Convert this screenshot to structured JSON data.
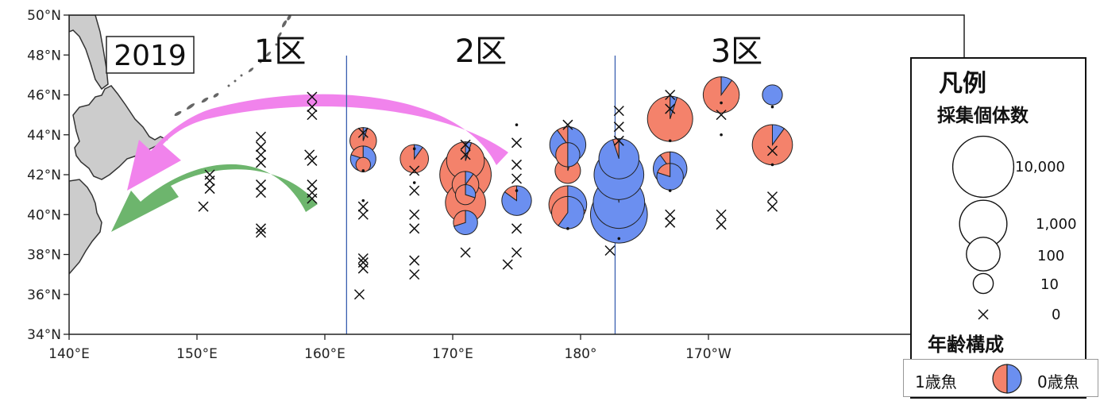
{
  "year": "2019",
  "zones": [
    {
      "label": "1区",
      "lon": 156.5
    },
    {
      "label": "2区",
      "lon": 172.2
    },
    {
      "label": "3区",
      "lon": 192.2
    }
  ],
  "zone_dividers": [
    161.7,
    182.7
  ],
  "axes": {
    "lon_range": [
      140,
      210
    ],
    "lat_range": [
      34,
      50
    ],
    "x_ticks": [
      {
        "lon": 140,
        "label": "140°E"
      },
      {
        "lon": 150,
        "label": "150°E"
      },
      {
        "lon": 160,
        "label": "160°E"
      },
      {
        "lon": 170,
        "label": "170°E"
      },
      {
        "lon": 180,
        "label": "180°"
      },
      {
        "lon": 190,
        "label": "170°W"
      }
    ],
    "y_ticks": [
      {
        "lat": 34,
        "label": "34°N"
      },
      {
        "lat": 36,
        "label": "36°N"
      },
      {
        "lat": 38,
        "label": "38°N"
      },
      {
        "lat": 40,
        "label": "40°N"
      },
      {
        "lat": 42,
        "label": "42°N"
      },
      {
        "lat": 44,
        "label": "44°N"
      },
      {
        "lat": 46,
        "label": "46°N"
      },
      {
        "lat": 48,
        "label": "48°N"
      },
      {
        "lat": 50,
        "label": "50°N"
      }
    ]
  },
  "colors": {
    "age1": "#f4826b",
    "age0": "#6b8ff0",
    "land": "#cccccc",
    "pink_arrow": "#f183ec",
    "green_arrow": "#6db56d",
    "divider": "#3a5fb0"
  },
  "legend": {
    "title": "凡例",
    "count_title": "採集個体数",
    "age_title": "年齢構成",
    "sizes": [
      {
        "label": "10,000",
        "count": 10000
      },
      {
        "label": "1,000",
        "count": 1000
      },
      {
        "label": "100",
        "count": 100
      },
      {
        "label": "10",
        "count": 10
      },
      {
        "label": "0",
        "count": 0
      }
    ],
    "age_left": "1歳魚",
    "age_right": "0歳魚"
  },
  "stations": [
    {
      "lon": 151,
      "lat": 42,
      "count": 0
    },
    {
      "lon": 151,
      "lat": 41.7,
      "count": 0
    },
    {
      "lon": 151,
      "lat": 41.3,
      "count": 0
    },
    {
      "lon": 150.5,
      "lat": 40.4,
      "count": 0
    },
    {
      "lon": 155,
      "lat": 43.9,
      "count": 0
    },
    {
      "lon": 155,
      "lat": 43.4,
      "count": 0
    },
    {
      "lon": 155,
      "lat": 43,
      "count": 0
    },
    {
      "lon": 155,
      "lat": 42.6,
      "count": 0
    },
    {
      "lon": 155,
      "lat": 41.5,
      "count": 0
    },
    {
      "lon": 155,
      "lat": 41.1,
      "count": 0
    },
    {
      "lon": 155,
      "lat": 39.3,
      "count": 0
    },
    {
      "lon": 155,
      "lat": 39.1,
      "count": 0
    },
    {
      "lon": 159,
      "lat": 45.9,
      "count": 0
    },
    {
      "lon": 159,
      "lat": 45.4,
      "count": 0
    },
    {
      "lon": 159,
      "lat": 45,
      "count": 0
    },
    {
      "lon": 158.8,
      "lat": 43,
      "count": 0
    },
    {
      "lon": 159,
      "lat": 42.7,
      "count": 0
    },
    {
      "lon": 159,
      "lat": 41.5,
      "count": 0
    },
    {
      "lon": 159,
      "lat": 41.1,
      "count": 0
    },
    {
      "lon": 159,
      "lat": 40.8,
      "count": 0
    },
    {
      "lon": 163,
      "lat": 44.1,
      "count": 0
    },
    {
      "lon": 163,
      "lat": 43.7,
      "count": 30,
      "age1": 0.95
    },
    {
      "lon": 163,
      "lat": 42.8,
      "count": 25,
      "age1": 0.2
    },
    {
      "lon": 163,
      "lat": 42.5,
      "count": 4,
      "age1": 1
    },
    {
      "lon": 163,
      "lat": 42.2,
      "count": 1,
      "age1": 1
    },
    {
      "lon": 163,
      "lat": 40.7,
      "count": 1,
      "age1": 1
    },
    {
      "lon": 163,
      "lat": 40.4,
      "count": 0
    },
    {
      "lon": 163,
      "lat": 40,
      "count": 0
    },
    {
      "lon": 163,
      "lat": 37.8,
      "count": 0
    },
    {
      "lon": 163,
      "lat": 37.6,
      "count": 0
    },
    {
      "lon": 163,
      "lat": 37.3,
      "count": 0
    },
    {
      "lon": 162.7,
      "lat": 36,
      "count": 0
    },
    {
      "lon": 167,
      "lat": 43.3,
      "count": 1,
      "age1": 1
    },
    {
      "lon": 167,
      "lat": 42.8,
      "count": 40,
      "age1": 0.9
    },
    {
      "lon": 167,
      "lat": 42.2,
      "count": 0
    },
    {
      "lon": 167,
      "lat": 41.6,
      "count": 1,
      "age1": 1
    },
    {
      "lon": 167,
      "lat": 41.2,
      "count": 0
    },
    {
      "lon": 167,
      "lat": 40,
      "count": 0
    },
    {
      "lon": 167,
      "lat": 39.3,
      "count": 0
    },
    {
      "lon": 167,
      "lat": 37.7,
      "count": 0
    },
    {
      "lon": 167,
      "lat": 37,
      "count": 0
    },
    {
      "lon": 171,
      "lat": 43.5,
      "count": 0
    },
    {
      "lon": 171,
      "lat": 43,
      "count": 0
    },
    {
      "lon": 171,
      "lat": 42.7,
      "count": 200,
      "age1": 0.95
    },
    {
      "lon": 171,
      "lat": 42,
      "count": 2000,
      "age1": 0.97
    },
    {
      "lon": 171,
      "lat": 41.5,
      "count": 30,
      "age1": 0.9
    },
    {
      "lon": 171,
      "lat": 41,
      "count": 10,
      "age1": 0.7
    },
    {
      "lon": 171,
      "lat": 40.6,
      "count": 300,
      "age1": 0.9
    },
    {
      "lon": 171,
      "lat": 39.6,
      "count": 20,
      "age1": 0.3
    },
    {
      "lon": 171,
      "lat": 38.1,
      "count": 0
    },
    {
      "lon": 175,
      "lat": 44.5,
      "count": 1,
      "age1": 1
    },
    {
      "lon": 175,
      "lat": 43.6,
      "count": 0
    },
    {
      "lon": 175,
      "lat": 42.5,
      "count": 0
    },
    {
      "lon": 175,
      "lat": 41.8,
      "count": 0
    },
    {
      "lon": 175,
      "lat": 41.2,
      "count": 1,
      "age1": 1
    },
    {
      "lon": 175,
      "lat": 40.7,
      "count": 50,
      "age1": 0.15
    },
    {
      "lon": 175,
      "lat": 39.3,
      "count": 0
    },
    {
      "lon": 175,
      "lat": 38.1,
      "count": 0
    },
    {
      "lon": 174.3,
      "lat": 37.5,
      "count": 0
    },
    {
      "lon": 179,
      "lat": 44.5,
      "count": 0
    },
    {
      "lon": 179,
      "lat": 43.5,
      "count": 150,
      "age1": 0.1
    },
    {
      "lon": 179,
      "lat": 43,
      "count": 20,
      "age1": 0.5
    },
    {
      "lon": 179,
      "lat": 42.2,
      "count": 25,
      "age1": 0.95
    },
    {
      "lon": 179,
      "lat": 40.5,
      "count": 200,
      "age1": 0.7
    },
    {
      "lon": 179,
      "lat": 40.1,
      "count": 80,
      "age1": 0.4
    },
    {
      "lon": 179,
      "lat": 39.3,
      "count": 1,
      "age1": 0
    },
    {
      "lon": 183,
      "lat": 45.2,
      "count": 0
    },
    {
      "lon": 183,
      "lat": 44.4,
      "count": 0
    },
    {
      "lon": 183,
      "lat": 43.7,
      "count": 0
    },
    {
      "lon": 183,
      "lat": 42.8,
      "count": 300,
      "age1": 0.05
    },
    {
      "lon": 183,
      "lat": 42,
      "count": 1500,
      "age1": 0.02
    },
    {
      "lon": 183,
      "lat": 40.6,
      "count": 2000,
      "age1": 0.02
    },
    {
      "lon": 183,
      "lat": 40,
      "count": 5000,
      "age1": 0.02
    },
    {
      "lon": 183,
      "lat": 38.8,
      "count": 1,
      "age1": 1
    },
    {
      "lon": 182.3,
      "lat": 38.2,
      "count": 0
    },
    {
      "lon": 187,
      "lat": 46,
      "count": 0
    },
    {
      "lon": 187,
      "lat": 45.3,
      "count": 0
    },
    {
      "lon": 187,
      "lat": 44.8,
      "count": 700,
      "age1": 0.95
    },
    {
      "lon": 187,
      "lat": 43.7,
      "count": 1,
      "age1": 1
    },
    {
      "lon": 187,
      "lat": 42.3,
      "count": 100,
      "age1": 0.1
    },
    {
      "lon": 187,
      "lat": 41.9,
      "count": 30,
      "age1": 0.2
    },
    {
      "lon": 187,
      "lat": 41.2,
      "count": 1,
      "age1": 1
    },
    {
      "lon": 187,
      "lat": 40,
      "count": 0
    },
    {
      "lon": 187,
      "lat": 39.6,
      "count": 0
    },
    {
      "lon": 191,
      "lat": 46,
      "count": 150,
      "age1": 0.9
    },
    {
      "lon": 191,
      "lat": 45.6,
      "count": 1,
      "age1": 1
    },
    {
      "lon": 191,
      "lat": 45,
      "count": 0
    },
    {
      "lon": 191,
      "lat": 44,
      "count": 2,
      "age1": 1
    },
    {
      "lon": 191,
      "lat": 40,
      "count": 0
    },
    {
      "lon": 191,
      "lat": 39.5,
      "count": 0
    },
    {
      "lon": 195,
      "lat": 46,
      "count": 10,
      "age1": 0
    },
    {
      "lon": 195,
      "lat": 45.4,
      "count": 1,
      "age1": 1
    },
    {
      "lon": 195,
      "lat": 43.5,
      "count": 300,
      "age1": 0.9
    },
    {
      "lon": 195,
      "lat": 43.2,
      "count": 0
    },
    {
      "lon": 195,
      "lat": 42.5,
      "count": 1,
      "age1": 1
    },
    {
      "lon": 195,
      "lat": 40.9,
      "count": 0
    },
    {
      "lon": 195,
      "lat": 40.4,
      "count": 0
    }
  ]
}
